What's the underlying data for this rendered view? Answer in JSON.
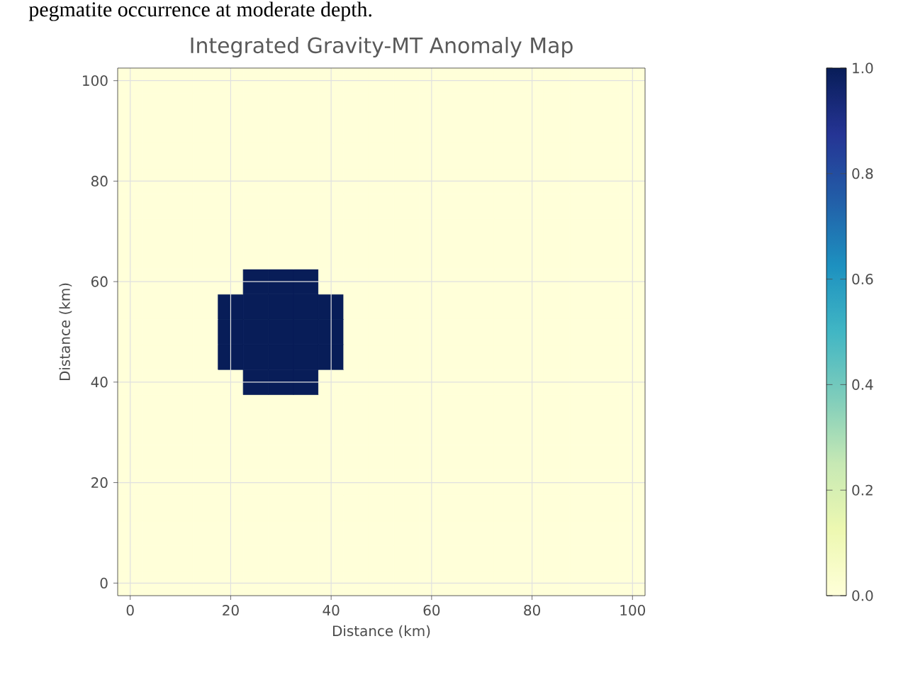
{
  "chart_data": {
    "type": "heatmap",
    "title": "Integrated Gravity-MT Anomaly Map",
    "xlabel": "Distance (km)",
    "ylabel": "Distance (km)",
    "annotations": [
      "pegmatite occurrence at moderate depth."
    ],
    "categories": [
      "0",
      null,
      null,
      null,
      "20",
      null,
      null,
      null,
      "40",
      null,
      null,
      null,
      "60",
      null,
      null,
      null,
      "80",
      null,
      null,
      null,
      "100"
    ],
    "y_categories": [
      "100",
      null,
      null,
      null,
      "80",
      null,
      null,
      null,
      "60",
      null,
      null,
      null,
      "40",
      null,
      null,
      null,
      "20",
      null,
      null,
      null,
      "0"
    ],
    "grid": true,
    "clim": [
      0,
      1
    ],
    "cticks": [
      {
        "value": 0,
        "label": "0.0"
      },
      {
        "value": 0.2,
        "label": "0.2"
      },
      {
        "value": 0.4,
        "label": "0.4"
      },
      {
        "value": 0.6,
        "label": "0.6"
      },
      {
        "value": 0.8,
        "label": "0.8"
      },
      {
        "value": 1,
        "label": "1.0"
      }
    ],
    "cells": [
      [
        0,
        0,
        0,
        0,
        0,
        0,
        0,
        0,
        0,
        0,
        0,
        0,
        0,
        0,
        0,
        0,
        0,
        0,
        0,
        0,
        0
      ],
      [
        0,
        0,
        0,
        0,
        0,
        0,
        0,
        0,
        0,
        0,
        0,
        0,
        0,
        0,
        0,
        0,
        0,
        0,
        0,
        0,
        0
      ],
      [
        0,
        0,
        0,
        0,
        0,
        0,
        0,
        0,
        0,
        0,
        0,
        0,
        0,
        0,
        0,
        0,
        0,
        0,
        0,
        0,
        0
      ],
      [
        0,
        0,
        0,
        0,
        0,
        0,
        0,
        0,
        0,
        0,
        0,
        0,
        0,
        0,
        0,
        0,
        0,
        0,
        0,
        0,
        0
      ],
      [
        0,
        0,
        0,
        0,
        0,
        0,
        0,
        0,
        0,
        0,
        0,
        0,
        0,
        0,
        0,
        0,
        0,
        0,
        0,
        0,
        0
      ],
      [
        0,
        0,
        0,
        0,
        0,
        0,
        0,
        0,
        0,
        0,
        0,
        0,
        0,
        0,
        0,
        0,
        0,
        0,
        0,
        0,
        0
      ],
      [
        0,
        0,
        0,
        0,
        0,
        0,
        0,
        0,
        0,
        0,
        0,
        0,
        0,
        0,
        0,
        0,
        0,
        0,
        0,
        0,
        0
      ],
      [
        0,
        0,
        0,
        0,
        0,
        0,
        0,
        0,
        0,
        0,
        0,
        0,
        0,
        0,
        0,
        0,
        0,
        0,
        0,
        0,
        0
      ],
      [
        0,
        0,
        0,
        0,
        0,
        1,
        1,
        1,
        0,
        0,
        0,
        0,
        0,
        0,
        0,
        0,
        0,
        0,
        0,
        0,
        0
      ],
      [
        0,
        0,
        0,
        0,
        1,
        1,
        1,
        1,
        1,
        0,
        0,
        0,
        0,
        0,
        0,
        0,
        0,
        0,
        0,
        0,
        0
      ],
      [
        0,
        0,
        0,
        0,
        1,
        1,
        1,
        1,
        1,
        0,
        0,
        0,
        0,
        0,
        0,
        0,
        0,
        0,
        0,
        0,
        0
      ],
      [
        0,
        0,
        0,
        0,
        1,
        1,
        1,
        1,
        1,
        0,
        0,
        0,
        0,
        0,
        0,
        0,
        0,
        0,
        0,
        0,
        0
      ],
      [
        0,
        0,
        0,
        0,
        0,
        1,
        1,
        1,
        0,
        0,
        0,
        0,
        0,
        0,
        0,
        0,
        0,
        0,
        0,
        0,
        0
      ],
      [
        0,
        0,
        0,
        0,
        0,
        0,
        0,
        0,
        0,
        0,
        0,
        0,
        0,
        0,
        0,
        0,
        0,
        0,
        0,
        0,
        0
      ],
      [
        0,
        0,
        0,
        0,
        0,
        0,
        0,
        0,
        0,
        0,
        0,
        0,
        0,
        0,
        0,
        0,
        0,
        0,
        0,
        0,
        0
      ],
      [
        0,
        0,
        0,
        0,
        0,
        0,
        0,
        0,
        0,
        0,
        0,
        0,
        0,
        0,
        0,
        0,
        0,
        0,
        0,
        0,
        0
      ],
      [
        0,
        0,
        0,
        0,
        0,
        0,
        0,
        0,
        0,
        0,
        0,
        0,
        0,
        0,
        0,
        0,
        0,
        0,
        0,
        0,
        0
      ],
      [
        0,
        0,
        0,
        0,
        0,
        0,
        0,
        0,
        0,
        0,
        0,
        0,
        0,
        0,
        0,
        0,
        0,
        0,
        0,
        0,
        0
      ],
      [
        0,
        0,
        0,
        0,
        0,
        0,
        0,
        0,
        0,
        0,
        0,
        0,
        0,
        0,
        0,
        0,
        0,
        0,
        0,
        0,
        0
      ],
      [
        0,
        0,
        0,
        0,
        0,
        0,
        0,
        0,
        0,
        0,
        0,
        0,
        0,
        0,
        0,
        0,
        0,
        0,
        0,
        0,
        0
      ],
      [
        0,
        0,
        0,
        0,
        0,
        0,
        0,
        0,
        0,
        0,
        0,
        0,
        0,
        0,
        0,
        0,
        0,
        0,
        0,
        0,
        0
      ]
    ]
  }
}
